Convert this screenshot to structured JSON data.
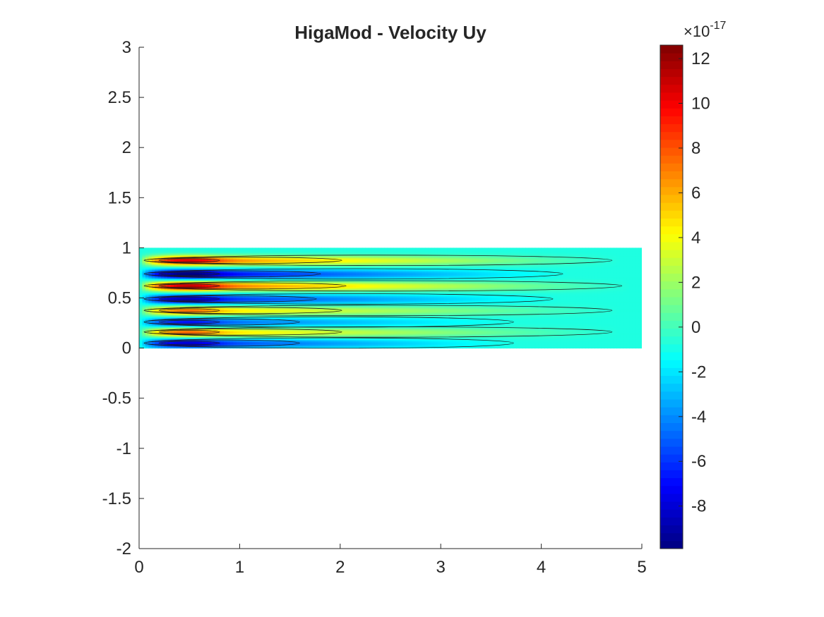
{
  "chart_data": {
    "type": "heatmap",
    "subtype": "filled-contour",
    "title": "HigaMod - Velocity Uy",
    "xlabel": "",
    "ylabel": "",
    "xlim": [
      0,
      5
    ],
    "ylim": [
      -2,
      3
    ],
    "x_ticks": [
      0,
      1,
      2,
      3,
      4,
      5
    ],
    "x_tick_labels": [
      "0",
      "1",
      "2",
      "3",
      "4",
      "5"
    ],
    "y_ticks": [
      -2,
      -1.5,
      -1,
      -0.5,
      0,
      0.5,
      1,
      1.5,
      2,
      2.5,
      3
    ],
    "y_tick_labels": [
      "-2",
      "-1.5",
      "-1",
      "-0.5",
      "0",
      "0.5",
      "1",
      "1.5",
      "2",
      "2.5",
      "3"
    ],
    "domain": {
      "x": [
        0,
        5
      ],
      "y": [
        0,
        1
      ]
    },
    "colormap": "jet",
    "colorbar": {
      "clim": [
        -9.9,
        12.6
      ],
      "multiplier_base": "×10",
      "multiplier_exp": "-17",
      "ticks": [
        -8,
        -6,
        -4,
        -2,
        0,
        2,
        4,
        6,
        8,
        10,
        12
      ],
      "tick_labels": [
        "-8",
        "-6",
        "-4",
        "-2",
        "0",
        "2",
        "4",
        "6",
        "8",
        "10",
        "12"
      ]
    },
    "background_value": -0.8,
    "bands": [
      {
        "y": 0.875,
        "amplitude": 11.8,
        "x_extent": 4.8
      },
      {
        "y": 0.74,
        "amplitude": -9.9,
        "x_extent": 4.3
      },
      {
        "y": 0.62,
        "amplitude": 12.5,
        "x_extent": 4.9
      },
      {
        "y": 0.49,
        "amplitude": -8.4,
        "x_extent": 4.2
      },
      {
        "y": 0.375,
        "amplitude": 8.5,
        "x_extent": 4.8
      },
      {
        "y": 0.26,
        "amplitude": -6.6,
        "x_extent": 3.8
      },
      {
        "y": 0.16,
        "amplitude": 8.8,
        "x_extent": 4.8
      },
      {
        "y": 0.05,
        "amplitude": -7.9,
        "x_extent": 3.8
      }
    ],
    "grid": false,
    "legend": "none"
  }
}
